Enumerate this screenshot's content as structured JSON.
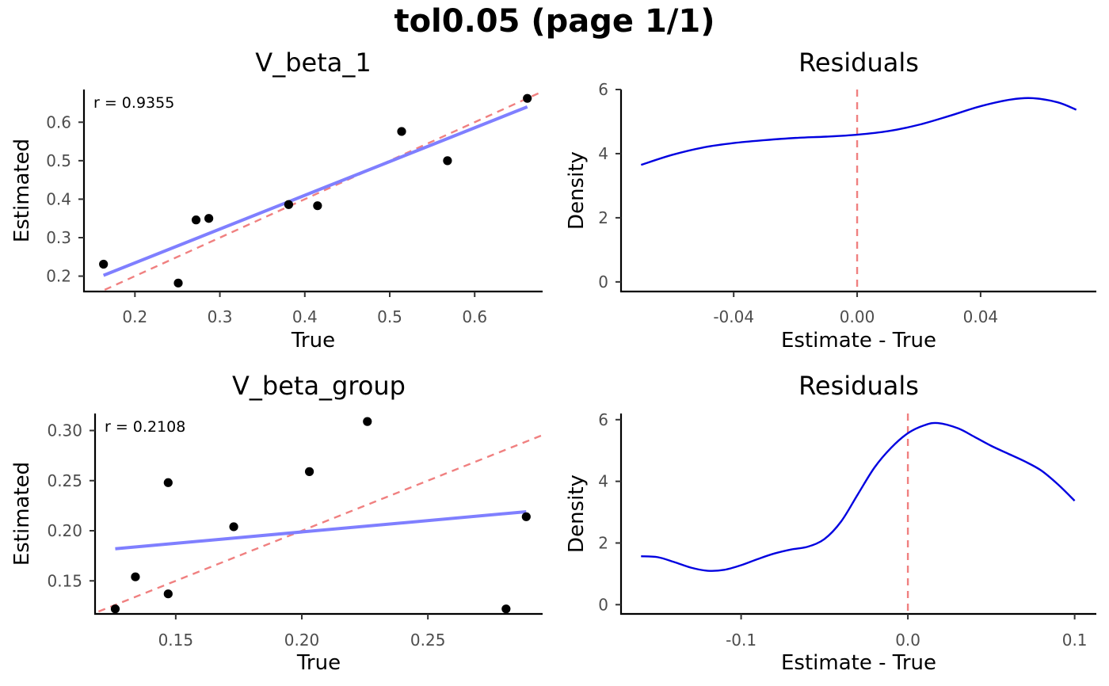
{
  "page_title": "tol0.05 (page 1/1)",
  "colors": {
    "points": "#000000",
    "fit_line": "#7f7fff",
    "identity_line": "#f08080",
    "density_line": "#0000e0",
    "zero_line": "#f08080"
  },
  "chart_data": [
    {
      "type": "scatter",
      "title": "V_beta_1",
      "xlabel": "True",
      "ylabel": "Estimated",
      "annotation": "r = 0.9355",
      "xlim": [
        0.14,
        0.68
      ],
      "ylim": [
        0.16,
        0.685
      ],
      "xticks": [
        0.2,
        0.3,
        0.4,
        0.5,
        0.6
      ],
      "xtick_labels": [
        "0.2",
        "0.3",
        "0.4",
        "0.5",
        "0.6"
      ],
      "yticks": [
        0.2,
        0.3,
        0.4,
        0.5,
        0.6
      ],
      "ytick_labels": [
        "0.2",
        "0.3",
        "0.4",
        "0.5",
        "0.6"
      ],
      "points": [
        {
          "x": 0.163,
          "y": 0.231
        },
        {
          "x": 0.251,
          "y": 0.182
        },
        {
          "x": 0.272,
          "y": 0.346
        },
        {
          "x": 0.287,
          "y": 0.35
        },
        {
          "x": 0.381,
          "y": 0.386
        },
        {
          "x": 0.415,
          "y": 0.383
        },
        {
          "x": 0.514,
          "y": 0.576
        },
        {
          "x": 0.568,
          "y": 0.5
        },
        {
          "x": 0.662,
          "y": 0.662
        }
      ],
      "fit_line": {
        "x": [
          0.163,
          0.662
        ],
        "y": [
          0.202,
          0.64
        ]
      },
      "identity_line": true
    },
    {
      "type": "line",
      "title": "Residuals",
      "xlabel": "Estimate - True",
      "ylabel": "Density",
      "xlim": [
        -0.0765,
        0.0775
      ],
      "ylim": [
        -0.3,
        6.0
      ],
      "xticks": [
        -0.04,
        0.0,
        0.04
      ],
      "xtick_labels": [
        "-0.04",
        "0.00",
        "0.04"
      ],
      "yticks": [
        0,
        2,
        4,
        6
      ],
      "ytick_labels": [
        "0",
        "2",
        "4",
        "6"
      ],
      "vline_x": 0,
      "x": [
        -0.07,
        -0.06,
        -0.05,
        -0.04,
        -0.03,
        -0.02,
        -0.01,
        0.0,
        0.01,
        0.02,
        0.03,
        0.04,
        0.05,
        0.057,
        0.065,
        0.071
      ],
      "y": [
        3.65,
        3.96,
        4.19,
        4.33,
        4.42,
        4.49,
        4.53,
        4.59,
        4.7,
        4.9,
        5.18,
        5.48,
        5.69,
        5.73,
        5.6,
        5.37
      ]
    },
    {
      "type": "scatter",
      "title": "V_beta_group",
      "xlabel": "True",
      "ylabel": "Estimated",
      "annotation": "r = 0.2108",
      "xlim": [
        0.118,
        0.2955
      ],
      "ylim": [
        0.117,
        0.317
      ],
      "xticks": [
        0.15,
        0.2,
        0.25
      ],
      "xtick_labels": [
        "0.15",
        "0.20",
        "0.25"
      ],
      "yticks": [
        0.15,
        0.2,
        0.25,
        0.3
      ],
      "ytick_labels": [
        "0.15",
        "0.20",
        "0.25",
        "0.30"
      ],
      "points": [
        {
          "x": 0.126,
          "y": 0.122
        },
        {
          "x": 0.134,
          "y": 0.154
        },
        {
          "x": 0.147,
          "y": 0.248
        },
        {
          "x": 0.147,
          "y": 0.137
        },
        {
          "x": 0.173,
          "y": 0.204
        },
        {
          "x": 0.203,
          "y": 0.259
        },
        {
          "x": 0.226,
          "y": 0.309
        },
        {
          "x": 0.281,
          "y": 0.122
        },
        {
          "x": 0.289,
          "y": 0.214
        }
      ],
      "fit_line": {
        "x": [
          0.126,
          0.289
        ],
        "y": [
          0.182,
          0.219
        ]
      },
      "identity_line": true
    },
    {
      "type": "line",
      "title": "Residuals",
      "xlabel": "Estimate - True",
      "ylabel": "Density",
      "xlim": [
        -0.172,
        0.113
      ],
      "ylim": [
        -0.3,
        6.2
      ],
      "xticks": [
        -0.1,
        0.0,
        0.1
      ],
      "xtick_labels": [
        "-0.1",
        "0.0",
        "0.1"
      ],
      "yticks": [
        0,
        2,
        4,
        6
      ],
      "ytick_labels": [
        "0",
        "2",
        "4",
        "6"
      ],
      "vline_x": 0,
      "x": [
        -0.16,
        -0.15,
        -0.14,
        -0.13,
        -0.12,
        -0.11,
        -0.1,
        -0.09,
        -0.08,
        -0.07,
        -0.06,
        -0.05,
        -0.04,
        -0.03,
        -0.02,
        -0.01,
        0.0,
        0.01,
        0.018,
        0.03,
        0.04,
        0.05,
        0.06,
        0.07,
        0.08,
        0.09,
        0.1
      ],
      "y": [
        1.57,
        1.54,
        1.38,
        1.2,
        1.1,
        1.13,
        1.28,
        1.48,
        1.66,
        1.79,
        1.88,
        2.13,
        2.7,
        3.58,
        4.45,
        5.09,
        5.56,
        5.82,
        5.89,
        5.72,
        5.44,
        5.15,
        4.9,
        4.65,
        4.35,
        3.9,
        3.37
      ]
    }
  ]
}
